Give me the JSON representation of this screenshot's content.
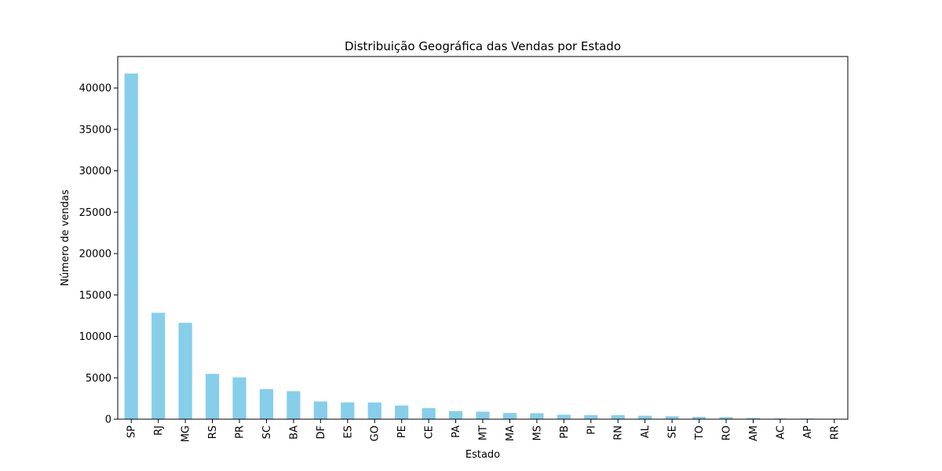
{
  "chart_data": {
    "type": "bar",
    "title": "Distribuição Geográfica das Vendas por Estado",
    "xlabel": "Estado",
    "ylabel": "Número de vendas",
    "categories": [
      "SP",
      "RJ",
      "MG",
      "RS",
      "PR",
      "SC",
      "BA",
      "DF",
      "ES",
      "GO",
      "PE",
      "CE",
      "PA",
      "MT",
      "MA",
      "MS",
      "PB",
      "PI",
      "RN",
      "AL",
      "SE",
      "TO",
      "RO",
      "AM",
      "AC",
      "AP",
      "RR"
    ],
    "values": [
      41750,
      12850,
      11640,
      5470,
      5050,
      3640,
      3380,
      2140,
      2030,
      2020,
      1650,
      1340,
      980,
      910,
      750,
      720,
      540,
      500,
      490,
      420,
      350,
      280,
      250,
      150,
      80,
      70,
      45
    ],
    "ylim": [
      0,
      43800
    ],
    "yticks": [
      0,
      5000,
      10000,
      15000,
      20000,
      25000,
      30000,
      35000,
      40000
    ],
    "grid": false,
    "legend": "none",
    "bar_color": "#87CEEB"
  }
}
